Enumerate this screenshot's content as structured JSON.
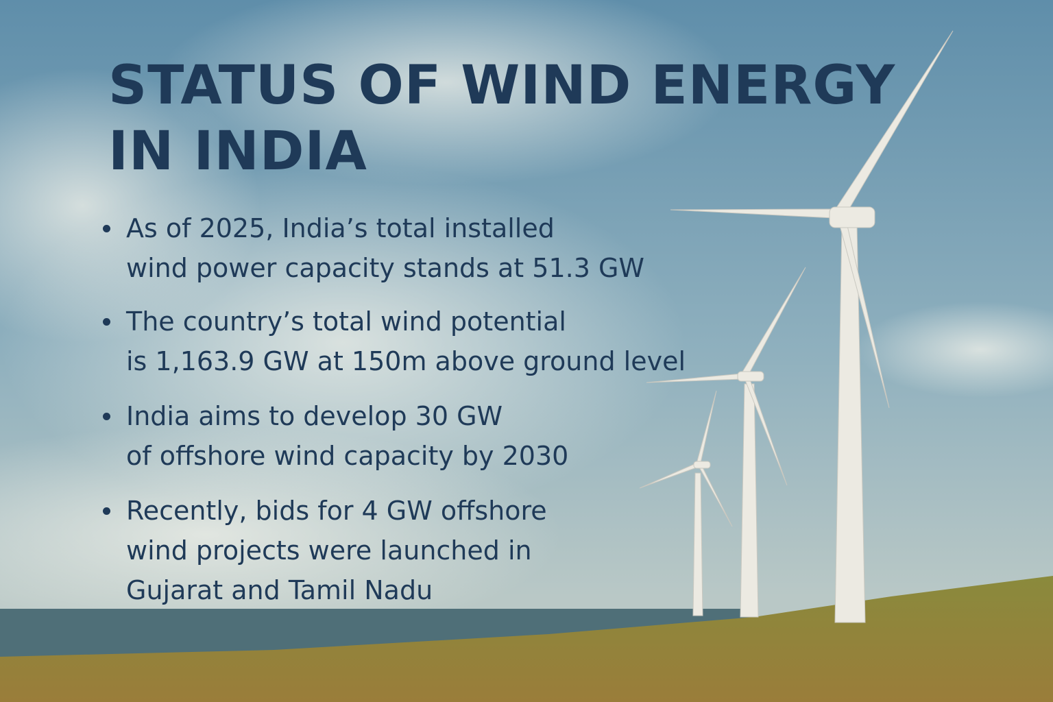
{
  "title": [
    "STATUS OF WIND ENERGY",
    "IN INDIA"
  ],
  "bullets": [
    [
      "As of 2025, India’s total installed",
      "wind power capacity stands at 51.3 GW"
    ],
    [
      "The country’s total wind potential",
      "is 1,163.9 GW at 150m above ground level"
    ],
    [
      "India aims to develop 30 GW",
      "of offshore wind capacity by 2030"
    ],
    [
      "Recently, bids for 4 GW offshore",
      "wind projects were launched in",
      "Gujarat and Tamil Nadu"
    ]
  ]
}
